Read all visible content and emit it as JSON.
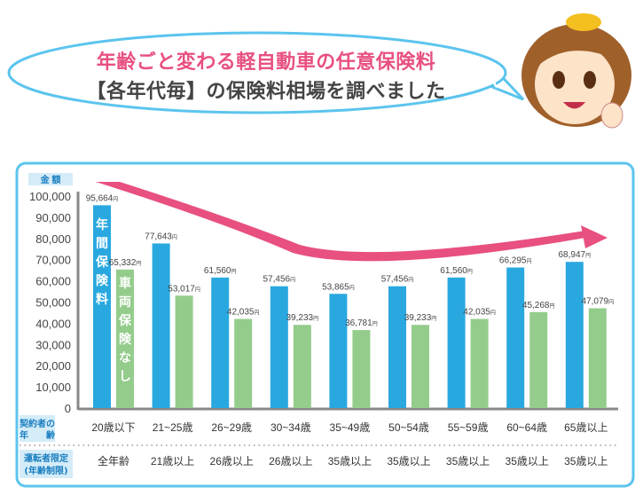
{
  "header": {
    "line1": "年齢ごと変わる軽自動車の任意保険料",
    "line2": "【各年代毎】の保険料相場を調べました"
  },
  "chart_data": {
    "type": "bar",
    "ylabel": "金 額",
    "ylim": [
      0,
      100000
    ],
    "yticks": [
      "0",
      "10,000",
      "20,000",
      "30,000",
      "40,000",
      "50,000",
      "60,000",
      "70,000",
      "80,000",
      "90,000",
      "100,000"
    ],
    "categories": [
      "20歳以下",
      "21~25歳",
      "26~29歳",
      "30~34歳",
      "35~49歳",
      "50~54歳",
      "55~59歳",
      "60~64歳",
      "65歳以上"
    ],
    "row1_label": [
      "契約者の",
      "年　　齢"
    ],
    "row2_label": [
      "運転者限定",
      "(年齢制限)"
    ],
    "driver_limit": [
      "全年齢",
      "21歳以上",
      "26歳以上",
      "26歳以上",
      "35歳以上",
      "35歳以上",
      "35歳以上",
      "35歳以上",
      "35歳以上"
    ],
    "series": [
      {
        "name": "年間保険料",
        "color": "#29a8e0",
        "values": [
          95664,
          77643,
          61560,
          57456,
          53865,
          57456,
          61560,
          66295,
          68947
        ]
      },
      {
        "name": "車両保険なし",
        "color": "#94cc8c",
        "values": [
          65332,
          53017,
          42035,
          39233,
          36781,
          39233,
          42035,
          45268,
          47079
        ]
      }
    ],
    "value_suffix": "円",
    "accent": "#e8507f",
    "border": "#5bc4ee"
  }
}
